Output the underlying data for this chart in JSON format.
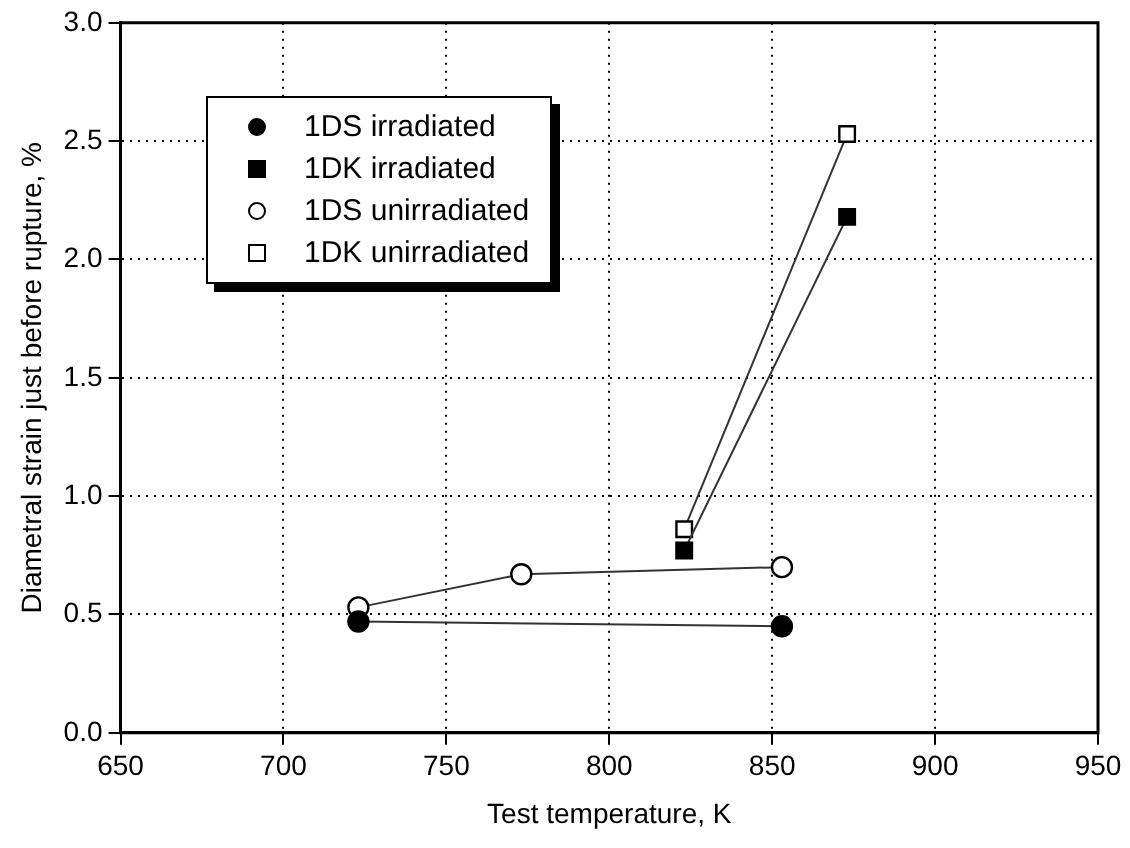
{
  "chart_data": {
    "type": "line",
    "xlabel": "Test temperature, K",
    "ylabel": "Diametral strain just before rupture, %",
    "xlim": [
      650,
      950
    ],
    "xticks": [
      650,
      700,
      750,
      800,
      850,
      900,
      950
    ],
    "ylim": [
      0,
      3
    ],
    "yticks": [
      {
        "value": 0,
        "label": "0.0"
      },
      0.5,
      {
        "value": 1,
        "label": "1.0"
      },
      1.5,
      {
        "value": 2,
        "label": "2.0"
      },
      2.5,
      {
        "value": 3,
        "label": "3.0"
      }
    ],
    "grid": true,
    "legend": "top left",
    "line_style": "solid",
    "series": [
      {
        "name": "1DS irradiated",
        "color": "#000000",
        "marker": "circle",
        "x": [
          723,
          853
        ],
        "values": [
          0.47,
          0.45
        ]
      },
      {
        "name": "1DK irradiated",
        "color": "#000000",
        "marker": "square",
        "x": [
          823,
          873
        ],
        "values": [
          0.77,
          2.18
        ]
      },
      {
        "name": "1DS unirradiated",
        "color": "#ffffff",
        "marker": "circle",
        "x": [
          723,
          773,
          853
        ],
        "values": [
          0.53,
          0.67,
          0.7
        ]
      },
      {
        "name": "1DK unirradiated",
        "color": "#ffffff",
        "marker": "square",
        "x": [
          823,
          873
        ],
        "values": [
          0.86,
          2.53
        ]
      }
    ]
  }
}
